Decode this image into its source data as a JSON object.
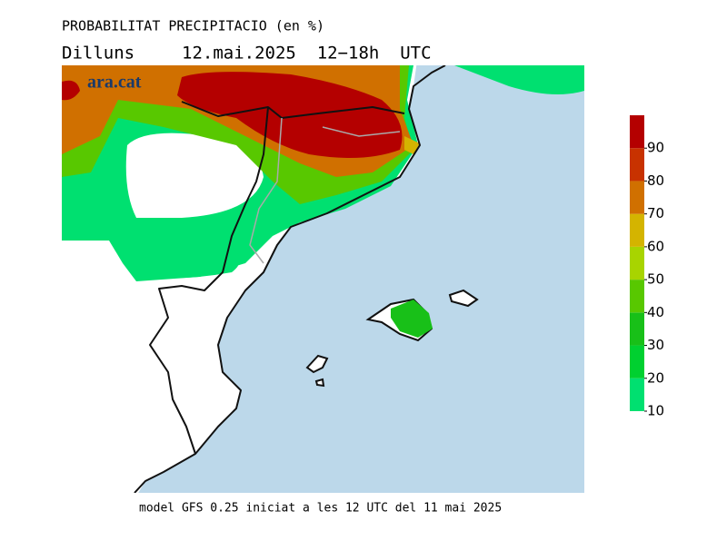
{
  "header": {
    "title": "PROBABILITAT PRECIPITACIO (en %)",
    "day": "Dilluns",
    "period": "12.mai.2025  12−18h  UTC"
  },
  "watermark": "ara.cat",
  "footer": "model GFS 0.25 iniciat a les 12 UTC del 11 mai 2025",
  "legend": {
    "bounds": [
      10,
      20,
      30,
      40,
      50,
      60,
      70,
      80,
      90,
      100
    ],
    "colors": [
      "#00e070",
      "#00d030",
      "#18c018",
      "#58c800",
      "#a8d400",
      "#d4b400",
      "#d07000",
      "#c83200",
      "#b40000"
    ],
    "ticks": [
      10,
      20,
      30,
      40,
      50,
      60,
      70,
      80,
      90
    ]
  }
}
